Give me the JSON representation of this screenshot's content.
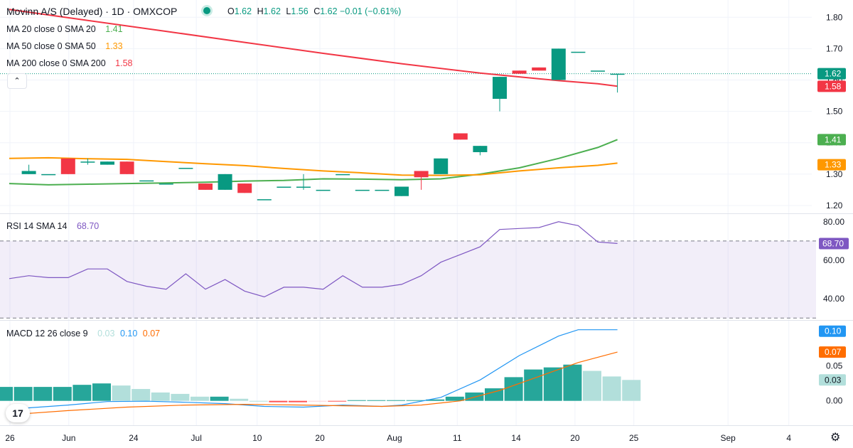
{
  "header": {
    "title": "Movinn A/S (Delayed) · 1D · OMXCOP",
    "ohlc": {
      "o_label": "O",
      "o": "1.62",
      "h_label": "H",
      "h": "1.62",
      "l_label": "L",
      "l": "1.56",
      "c_label": "C",
      "c": "1.62",
      "change": "−0.01 (−0.61%)"
    },
    "status_color": "#089981"
  },
  "legends": {
    "ma20": {
      "label": "MA 20 close 0 SMA 20",
      "value": "1.41",
      "color": "#4caf50"
    },
    "ma50": {
      "label": "MA 50 close 0 SMA 50",
      "value": "1.33",
      "color": "#ff9800"
    },
    "ma200": {
      "label": "MA 200 close 0 SMA 200",
      "value": "1.58",
      "color": "#f23645"
    },
    "rsi": {
      "label": "RSI 14 SMA 14",
      "value": "68.70",
      "color": "#7e57c2"
    },
    "macd": {
      "label": "MACD 12 26 close 9",
      "v1": "0.03",
      "v2": "0.10",
      "v3": "0.07",
      "c1": "#b2dfdb",
      "c2": "#2196f3",
      "c3": "#ff6d00"
    }
  },
  "collapse_icon": "chevron-up-icon",
  "logo_text": "17",
  "chart_data": [
    {
      "type": "candlestick",
      "title": "Movinn A/S (Delayed) · 1D · OMXCOP",
      "y_ticks": [
        "1.80",
        "1.70",
        "1.60",
        "1.50",
        "1.40",
        "1.30",
        "1.20"
      ],
      "ylim": [
        1.175,
        1.855
      ],
      "price_labels": [
        {
          "text": "1.62",
          "value": 1.62,
          "color": "#089981"
        },
        {
          "text": "1.58",
          "value": 1.58,
          "color": "#f23645"
        },
        {
          "text": "1.41",
          "value": 1.41,
          "color": "#4caf50"
        },
        {
          "text": "1.33",
          "value": 1.33,
          "color": "#ff9800"
        }
      ],
      "last_price_line": 1.62,
      "candles": [
        {
          "x": 1,
          "o": 1.3,
          "h": 1.33,
          "l": 1.3,
          "c": 1.31
        },
        {
          "x": 2,
          "o": 1.3,
          "h": 1.3,
          "l": 1.3,
          "c": 1.3
        },
        {
          "x": 3,
          "o": 1.35,
          "h": 1.35,
          "l": 1.3,
          "c": 1.3
        },
        {
          "x": 4,
          "o": 1.34,
          "h": 1.35,
          "l": 1.33,
          "c": 1.34
        },
        {
          "x": 5,
          "o": 1.33,
          "h": 1.34,
          "l": 1.33,
          "c": 1.34
        },
        {
          "x": 6,
          "o": 1.34,
          "h": 1.34,
          "l": 1.3,
          "c": 1.3
        },
        {
          "x": 7,
          "o": 1.28,
          "h": 1.28,
          "l": 1.28,
          "c": 1.28
        },
        {
          "x": 8,
          "o": 1.27,
          "h": 1.27,
          "l": 1.27,
          "c": 1.27
        },
        {
          "x": 9,
          "o": 1.32,
          "h": 1.32,
          "l": 1.32,
          "c": 1.32
        },
        {
          "x": 10,
          "o": 1.27,
          "h": 1.27,
          "l": 1.25,
          "c": 1.25
        },
        {
          "x": 11,
          "o": 1.25,
          "h": 1.3,
          "l": 1.25,
          "c": 1.3
        },
        {
          "x": 12,
          "o": 1.27,
          "h": 1.27,
          "l": 1.24,
          "c": 1.24
        },
        {
          "x": 13,
          "o": 1.22,
          "h": 1.22,
          "l": 1.22,
          "c": 1.22
        },
        {
          "x": 14,
          "o": 1.26,
          "h": 1.26,
          "l": 1.26,
          "c": 1.26
        },
        {
          "x": 15,
          "o": 1.26,
          "h": 1.3,
          "l": 1.25,
          "c": 1.26
        },
        {
          "x": 16,
          "o": 1.25,
          "h": 1.25,
          "l": 1.25,
          "c": 1.25
        },
        {
          "x": 17,
          "o": 1.3,
          "h": 1.3,
          "l": 1.3,
          "c": 1.3
        },
        {
          "x": 18,
          "o": 1.25,
          "h": 1.25,
          "l": 1.25,
          "c": 1.25
        },
        {
          "x": 19,
          "o": 1.25,
          "h": 1.25,
          "l": 1.25,
          "c": 1.25
        },
        {
          "x": 20,
          "o": 1.23,
          "h": 1.26,
          "l": 1.23,
          "c": 1.26
        },
        {
          "x": 21,
          "o": 1.31,
          "h": 1.31,
          "l": 1.25,
          "c": 1.29
        },
        {
          "x": 22,
          "o": 1.3,
          "h": 1.35,
          "l": 1.3,
          "c": 1.35
        },
        {
          "x": 23,
          "o": 1.43,
          "h": 1.43,
          "l": 1.41,
          "c": 1.41
        },
        {
          "x": 24,
          "o": 1.37,
          "h": 1.39,
          "l": 1.36,
          "c": 1.39
        },
        {
          "x": 25,
          "o": 1.54,
          "h": 1.61,
          "l": 1.5,
          "c": 1.61
        },
        {
          "x": 26,
          "o": 1.63,
          "h": 1.63,
          "l": 1.62,
          "c": 1.62
        },
        {
          "x": 27,
          "o": 1.64,
          "h": 1.64,
          "l": 1.63,
          "c": 1.63
        },
        {
          "x": 28,
          "o": 1.6,
          "h": 1.7,
          "l": 1.6,
          "c": 1.7
        },
        {
          "x": 29,
          "o": 1.69,
          "h": 1.69,
          "l": 1.69,
          "c": 1.69
        },
        {
          "x": 30,
          "o": 1.63,
          "h": 1.63,
          "l": 1.63,
          "c": 1.63
        },
        {
          "x": 31,
          "o": 1.62,
          "h": 1.62,
          "l": 1.56,
          "c": 1.62
        }
      ],
      "series": [
        {
          "name": "MA 20 close 0 SMA 20",
          "color": "#4caf50",
          "points": [
            [
              0,
              1.27
            ],
            [
              2,
              1.266
            ],
            [
              4,
              1.268
            ],
            [
              6,
              1.27
            ],
            [
              8,
              1.272
            ],
            [
              10,
              1.274
            ],
            [
              12,
              1.278
            ],
            [
              14,
              1.28
            ],
            [
              16,
              1.285
            ],
            [
              18,
              1.284
            ],
            [
              20,
              1.282
            ],
            [
              22,
              1.285
            ],
            [
              24,
              1.3
            ],
            [
              26,
              1.32
            ],
            [
              28,
              1.35
            ],
            [
              30,
              1.385
            ],
            [
              31,
              1.41
            ]
          ]
        },
        {
          "name": "MA 50 close 0 SMA 50",
          "color": "#ff9800",
          "points": [
            [
              0,
              1.35
            ],
            [
              2,
              1.352
            ],
            [
              4,
              1.349
            ],
            [
              6,
              1.347
            ],
            [
              8,
              1.34
            ],
            [
              10,
              1.333
            ],
            [
              12,
              1.327
            ],
            [
              14,
              1.318
            ],
            [
              16,
              1.31
            ],
            [
              18,
              1.304
            ],
            [
              20,
              1.297
            ],
            [
              22,
              1.296
            ],
            [
              24,
              1.298
            ],
            [
              26,
              1.31
            ],
            [
              28,
              1.32
            ],
            [
              30,
              1.328
            ],
            [
              31,
              1.335
            ]
          ]
        },
        {
          "name": "MA 200 close 0 SMA 200",
          "color": "#f23645",
          "points": [
            [
              0,
              1.825
            ],
            [
              4,
              1.79
            ],
            [
              8,
              1.755
            ],
            [
              12,
              1.72
            ],
            [
              16,
              1.685
            ],
            [
              20,
              1.652
            ],
            [
              24,
              1.622
            ],
            [
              26,
              1.61
            ],
            [
              28,
              1.598
            ],
            [
              30,
              1.588
            ],
            [
              31,
              1.58
            ]
          ]
        }
      ]
    },
    {
      "type": "line",
      "name": "RSI 14 SMA 14",
      "y_ticks": [
        "80.00",
        "60.00",
        "40.00"
      ],
      "ylim": [
        29,
        84
      ],
      "bands": [
        30,
        70
      ],
      "last_value": 68.7,
      "value_label": "68.70",
      "values": [
        [
          0,
          50.5
        ],
        [
          1,
          52
        ],
        [
          2,
          51
        ],
        [
          3,
          51
        ],
        [
          4,
          55.5
        ],
        [
          5,
          55.5
        ],
        [
          6,
          49
        ],
        [
          7,
          46.5
        ],
        [
          8,
          45
        ],
        [
          9,
          53
        ],
        [
          10,
          45
        ],
        [
          11,
          50
        ],
        [
          12,
          44
        ],
        [
          13,
          41
        ],
        [
          14,
          46
        ],
        [
          15,
          46
        ],
        [
          16,
          45
        ],
        [
          17,
          52
        ],
        [
          18,
          46
        ],
        [
          19,
          46
        ],
        [
          20,
          47.5
        ],
        [
          21,
          52
        ],
        [
          22,
          59
        ],
        [
          23,
          63
        ],
        [
          24,
          67
        ],
        [
          25,
          76
        ],
        [
          26,
          76.5
        ],
        [
          27,
          77
        ],
        [
          28,
          80
        ],
        [
          29,
          78
        ],
        [
          30,
          69.5
        ],
        [
          31,
          68.7
        ]
      ]
    },
    {
      "type": "bar+line",
      "name": "MACD 12 26 close 9",
      "y_ticks": [
        "0.05",
        "0.00"
      ],
      "ylim": [
        -0.035,
        0.115
      ],
      "histogram": [
        0.02,
        0.02,
        0.02,
        0.02,
        0.023,
        0.025,
        0.022,
        0.017,
        0.012,
        0.01,
        0.006,
        0.006,
        0.003,
        0.0,
        -0.002,
        -0.002,
        -0.001,
        -0.001,
        0.001,
        0.001,
        0.001,
        0.001,
        0.002,
        0.006,
        0.012,
        0.018,
        0.034,
        0.045,
        0.048,
        0.052,
        0.043,
        0.035,
        0.03
      ],
      "series": [
        {
          "name": "MACD",
          "color": "#2196f3",
          "points": [
            [
              0,
              -0.012
            ],
            [
              3,
              -0.006
            ],
            [
              5,
              -0.001
            ],
            [
              7,
              -0.0005
            ],
            [
              9,
              -0.002
            ],
            [
              11,
              -0.004
            ],
            [
              13,
              -0.008
            ],
            [
              15,
              -0.009
            ],
            [
              17,
              -0.006
            ],
            [
              19,
              -0.008
            ],
            [
              20,
              -0.006
            ],
            [
              22,
              0.005
            ],
            [
              24,
              0.03
            ],
            [
              26,
              0.065
            ],
            [
              28,
              0.093
            ],
            [
              29,
              0.102
            ],
            [
              31,
              0.102
            ]
          ]
        },
        {
          "name": "Signal",
          "color": "#ff6d00",
          "points": [
            [
              0,
              -0.02
            ],
            [
              3,
              -0.014
            ],
            [
              6,
              -0.009
            ],
            [
              9,
              -0.006
            ],
            [
              12,
              -0.005
            ],
            [
              15,
              -0.006
            ],
            [
              17,
              -0.007
            ],
            [
              19,
              -0.008
            ],
            [
              21,
              -0.006
            ],
            [
              23,
              0.0
            ],
            [
              25,
              0.015
            ],
            [
              27,
              0.035
            ],
            [
              29,
              0.055
            ],
            [
              31,
              0.07
            ]
          ]
        }
      ],
      "value_labels": [
        {
          "text": "0.10",
          "value": 0.1,
          "color": "#2196f3"
        },
        {
          "text": "0.07",
          "value": 0.07,
          "color": "#ff6d00"
        },
        {
          "text": "0.03",
          "value": 0.03,
          "color": "#b2dfdb"
        }
      ]
    }
  ],
  "x_axis": {
    "labels": [
      {
        "text": "26",
        "idx": 0
      },
      {
        "text": "Jun",
        "idx": 3
      },
      {
        "text": "24",
        "idx": 6.3
      },
      {
        "text": "Jul",
        "idx": 9.5
      },
      {
        "text": "10",
        "idx": 12.6
      },
      {
        "text": "20",
        "idx": 15.8
      },
      {
        "text": "Aug",
        "idx": 19.6
      },
      {
        "text": "11",
        "idx": 22.8
      },
      {
        "text": "14",
        "idx": 25.8
      },
      {
        "text": "20",
        "idx": 28.8
      },
      {
        "text": "25",
        "idx": 31.8
      },
      {
        "text": "Sep",
        "idx": 36.6
      },
      {
        "text": "4",
        "idx": 39.7
      }
    ]
  },
  "colors": {
    "up": "#089981",
    "down": "#f23645",
    "grid": "#f0f3fa",
    "text": "#131722"
  }
}
